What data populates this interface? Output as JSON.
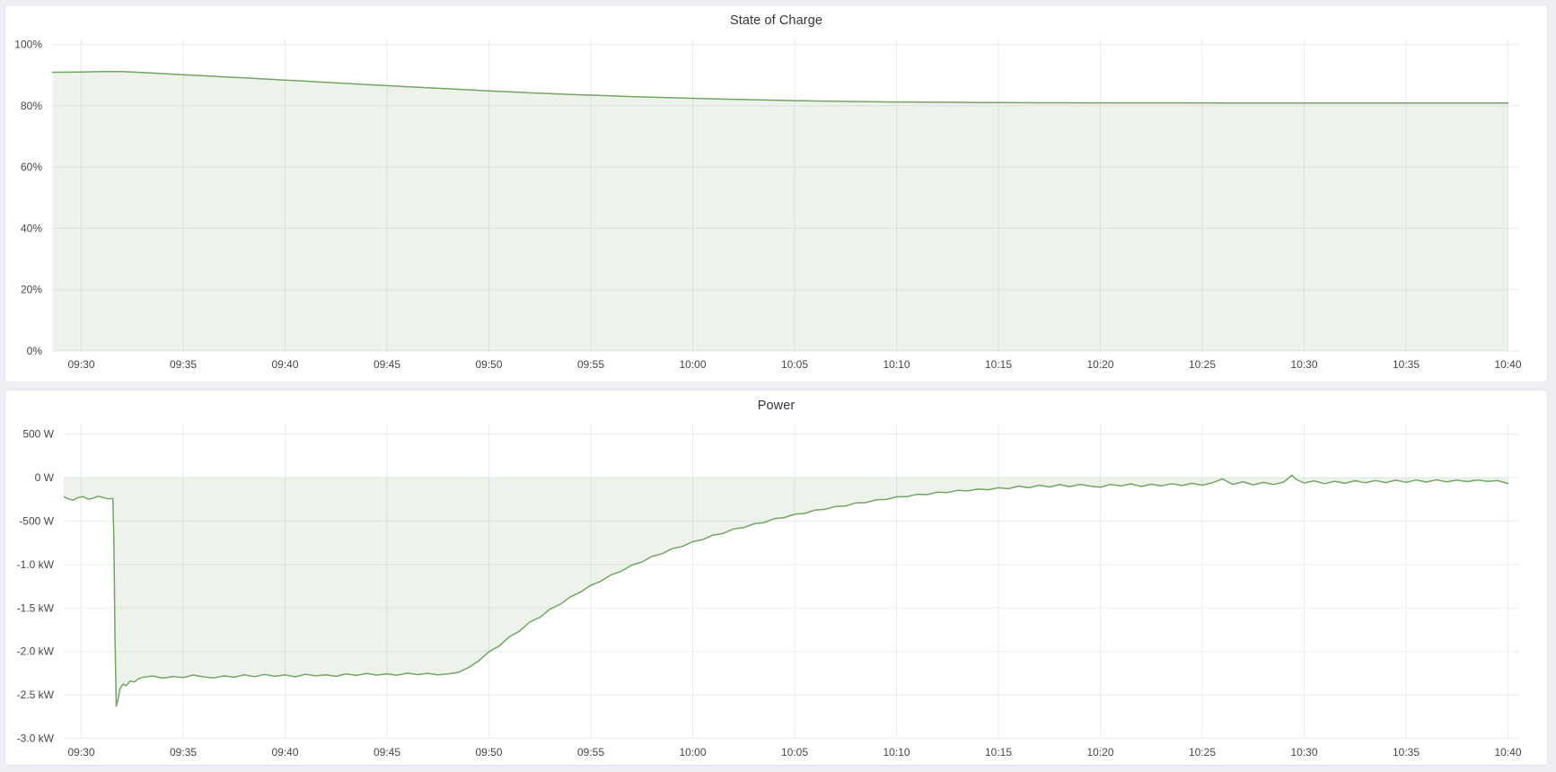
{
  "page": {
    "background": "#edeff5",
    "panel_background": "#ffffff"
  },
  "panels": [
    {
      "title": "State of Charge"
    },
    {
      "title": "Power"
    }
  ],
  "chart_data": [
    {
      "type": "area",
      "title": "State of Charge",
      "xlabel": "",
      "ylabel": "",
      "ylim": [
        0,
        100
      ],
      "grid": true,
      "legend": "none",
      "line_color": "#73a563",
      "fill_color": "rgba(115,165,99,0.13)",
      "x_ticks": [
        {
          "label": "09:30",
          "t": 0
        },
        {
          "label": "09:35",
          "t": 5
        },
        {
          "label": "09:40",
          "t": 10
        },
        {
          "label": "09:45",
          "t": 15
        },
        {
          "label": "09:50",
          "t": 20
        },
        {
          "label": "09:55",
          "t": 25
        },
        {
          "label": "10:00",
          "t": 30
        },
        {
          "label": "10:05",
          "t": 35
        },
        {
          "label": "10:10",
          "t": 40
        },
        {
          "label": "10:15",
          "t": 45
        },
        {
          "label": "10:20",
          "t": 50
        },
        {
          "label": "10:25",
          "t": 55
        },
        {
          "label": "10:30",
          "t": 60
        },
        {
          "label": "10:35",
          "t": 65
        },
        {
          "label": "10:40",
          "t": 70
        }
      ],
      "y_ticks": [
        {
          "label": "0%",
          "value": 0
        },
        {
          "label": "20%",
          "value": 20
        },
        {
          "label": "40%",
          "value": 40
        },
        {
          "label": "60%",
          "value": 60
        },
        {
          "label": "80%",
          "value": 80
        },
        {
          "label": "100%",
          "value": 100
        }
      ],
      "series": [
        {
          "name": "State of Charge",
          "unit": "%",
          "points": [
            [
              -1.4,
              90.92
            ],
            [
              0,
              91.0
            ],
            [
              0.7,
              91.1
            ],
            [
              1.3,
              91.18
            ],
            [
              2,
              91.12
            ],
            [
              2.5,
              91.0
            ],
            [
              3,
              90.82
            ],
            [
              4,
              90.47
            ],
            [
              5,
              90.12
            ],
            [
              6,
              89.77
            ],
            [
              7,
              89.42
            ],
            [
              8,
              89.07
            ],
            [
              9,
              88.72
            ],
            [
              10,
              88.37
            ],
            [
              11,
              88.02
            ],
            [
              12,
              87.64
            ],
            [
              13,
              87.28
            ],
            [
              14,
              86.92
            ],
            [
              15,
              86.57
            ],
            [
              16,
              86.22
            ],
            [
              17,
              85.87
            ],
            [
              18,
              85.52
            ],
            [
              19,
              85.2
            ],
            [
              20,
              84.86
            ],
            [
              21,
              84.55
            ],
            [
              22,
              84.22
            ],
            [
              23,
              83.96
            ],
            [
              24,
              83.7
            ],
            [
              25,
              83.45
            ],
            [
              26,
              83.22
            ],
            [
              27,
              83.0
            ],
            [
              28,
              82.8
            ],
            [
              29,
              82.6
            ],
            [
              30,
              82.42
            ],
            [
              31,
              82.26
            ],
            [
              32,
              82.1
            ],
            [
              33,
              81.96
            ],
            [
              34,
              81.82
            ],
            [
              35,
              81.68
            ],
            [
              36,
              81.56
            ],
            [
              37,
              81.46
            ],
            [
              38,
              81.37
            ],
            [
              39,
              81.3
            ],
            [
              40,
              81.24
            ],
            [
              41,
              81.19
            ],
            [
              42,
              81.14
            ],
            [
              43,
              81.1
            ],
            [
              44,
              81.06
            ],
            [
              45,
              81.03
            ],
            [
              46,
              81.0
            ],
            [
              47,
              80.98
            ],
            [
              48,
              80.97
            ],
            [
              50,
              80.95
            ],
            [
              52,
              80.94
            ],
            [
              54,
              80.93
            ],
            [
              56,
              80.92
            ],
            [
              58,
              80.91
            ],
            [
              60,
              80.9
            ],
            [
              62,
              80.89
            ],
            [
              64,
              80.885
            ],
            [
              66,
              80.88
            ],
            [
              68,
              80.875
            ],
            [
              70,
              80.87
            ]
          ]
        }
      ]
    },
    {
      "type": "area",
      "title": "Power",
      "xlabel": "",
      "ylabel": "",
      "ylim": [
        -3000,
        500
      ],
      "grid": true,
      "legend": "none",
      "line_color": "#73a563",
      "fill_color": "rgba(115,165,99,0.13)",
      "x_ticks": [
        {
          "label": "09:30",
          "t": 0
        },
        {
          "label": "09:35",
          "t": 5
        },
        {
          "label": "09:40",
          "t": 10
        },
        {
          "label": "09:45",
          "t": 15
        },
        {
          "label": "09:50",
          "t": 20
        },
        {
          "label": "09:55",
          "t": 25
        },
        {
          "label": "10:00",
          "t": 30
        },
        {
          "label": "10:05",
          "t": 35
        },
        {
          "label": "10:10",
          "t": 40
        },
        {
          "label": "10:15",
          "t": 45
        },
        {
          "label": "10:20",
          "t": 50
        },
        {
          "label": "10:25",
          "t": 55
        },
        {
          "label": "10:30",
          "t": 60
        },
        {
          "label": "10:35",
          "t": 65
        },
        {
          "label": "10:40",
          "t": 70
        }
      ],
      "y_ticks": [
        {
          "label": "500 W",
          "value": 500
        },
        {
          "label": "0 W",
          "value": 0
        },
        {
          "label": "-500 W",
          "value": -500
        },
        {
          "label": "-1.0 kW",
          "value": -1000
        },
        {
          "label": "-1.5 kW",
          "value": -1500
        },
        {
          "label": "-2.0 kW",
          "value": -2000
        },
        {
          "label": "-2.5 kW",
          "value": -2500
        },
        {
          "label": "-3.0 kW",
          "value": -3000
        }
      ],
      "series": [
        {
          "name": "Power",
          "unit": "W",
          "points": [
            [
              -1.4,
              -225
            ],
            [
              -1.15,
              -240
            ],
            [
              -0.9,
              -215
            ],
            [
              -0.65,
              -245
            ],
            [
              -0.4,
              -260
            ],
            [
              -0.15,
              -230
            ],
            [
              0.1,
              -220
            ],
            [
              0.35,
              -250
            ],
            [
              0.6,
              -235
            ],
            [
              0.85,
              -215
            ],
            [
              1.1,
              -232
            ],
            [
              1.35,
              -246
            ],
            [
              1.55,
              -240
            ],
            [
              1.6,
              -700
            ],
            [
              1.65,
              -1800
            ],
            [
              1.72,
              -2630
            ],
            [
              1.8,
              -2555
            ],
            [
              1.9,
              -2430
            ],
            [
              2.05,
              -2375
            ],
            [
              2.2,
              -2395
            ],
            [
              2.4,
              -2340
            ],
            [
              2.6,
              -2352
            ],
            [
              2.8,
              -2315
            ],
            [
              3,
              -2298
            ],
            [
              3.5,
              -2282
            ],
            [
              4,
              -2308
            ],
            [
              4.5,
              -2288
            ],
            [
              5,
              -2300
            ],
            [
              5.5,
              -2272
            ],
            [
              6,
              -2292
            ],
            [
              6.5,
              -2306
            ],
            [
              7,
              -2281
            ],
            [
              7.5,
              -2296
            ],
            [
              8,
              -2268
            ],
            [
              8.5,
              -2290
            ],
            [
              9,
              -2264
            ],
            [
              9.5,
              -2286
            ],
            [
              10,
              -2270
            ],
            [
              10.5,
              -2292
            ],
            [
              11,
              -2262
            ],
            [
              11.5,
              -2281
            ],
            [
              12,
              -2268
            ],
            [
              12.5,
              -2286
            ],
            [
              13,
              -2258
            ],
            [
              13.5,
              -2276
            ],
            [
              14,
              -2254
            ],
            [
              14.5,
              -2272
            ],
            [
              15,
              -2258
            ],
            [
              15.5,
              -2274
            ],
            [
              16,
              -2250
            ],
            [
              16.5,
              -2266
            ],
            [
              17,
              -2252
            ],
            [
              17.5,
              -2268
            ],
            [
              18,
              -2258
            ],
            [
              18.5,
              -2242
            ],
            [
              19,
              -2185
            ],
            [
              19.5,
              -2108
            ],
            [
              20,
              -2005
            ],
            [
              20.5,
              -1938
            ],
            [
              21,
              -1832
            ],
            [
              21.5,
              -1768
            ],
            [
              22,
              -1662
            ],
            [
              22.5,
              -1608
            ],
            [
              23,
              -1512
            ],
            [
              23.5,
              -1458
            ],
            [
              24,
              -1372
            ],
            [
              24.5,
              -1318
            ],
            [
              25,
              -1238
            ],
            [
              25.5,
              -1192
            ],
            [
              26,
              -1118
            ],
            [
              26.5,
              -1078
            ],
            [
              27,
              -1008
            ],
            [
              27.5,
              -972
            ],
            [
              28,
              -908
            ],
            [
              28.5,
              -876
            ],
            [
              29,
              -818
            ],
            [
              29.5,
              -792
            ],
            [
              30,
              -738
            ],
            [
              30.5,
              -712
            ],
            [
              31,
              -662
            ],
            [
              31.5,
              -642
            ],
            [
              32,
              -592
            ],
            [
              32.5,
              -576
            ],
            [
              33,
              -532
            ],
            [
              33.5,
              -518
            ],
            [
              34,
              -472
            ],
            [
              34.5,
              -460
            ],
            [
              35,
              -422
            ],
            [
              35.5,
              -412
            ],
            [
              36,
              -374
            ],
            [
              36.5,
              -366
            ],
            [
              37,
              -332
            ],
            [
              37.5,
              -326
            ],
            [
              38,
              -292
            ],
            [
              38.5,
              -288
            ],
            [
              39,
              -256
            ],
            [
              39.5,
              -252
            ],
            [
              40,
              -222
            ],
            [
              40.5,
              -220
            ],
            [
              41,
              -192
            ],
            [
              41.5,
              -196
            ],
            [
              42,
              -168
            ],
            [
              42.5,
              -172
            ],
            [
              43,
              -148
            ],
            [
              43.5,
              -154
            ],
            [
              44,
              -132
            ],
            [
              44.5,
              -140
            ],
            [
              45,
              -118
            ],
            [
              45.5,
              -128
            ],
            [
              46,
              -98
            ],
            [
              46.5,
              -118
            ],
            [
              47,
              -88
            ],
            [
              47.5,
              -108
            ],
            [
              48,
              -82
            ],
            [
              48.5,
              -104
            ],
            [
              49,
              -78
            ],
            [
              49.5,
              -98
            ],
            [
              50,
              -112
            ],
            [
              50.5,
              -80
            ],
            [
              51,
              -96
            ],
            [
              51.5,
              -72
            ],
            [
              52,
              -102
            ],
            [
              52.5,
              -76
            ],
            [
              53,
              -95
            ],
            [
              53.5,
              -70
            ],
            [
              54,
              -92
            ],
            [
              54.5,
              -66
            ],
            [
              55,
              -88
            ],
            [
              55.5,
              -60
            ],
            [
              56,
              -15
            ],
            [
              56.3,
              -55
            ],
            [
              56.5,
              -78
            ],
            [
              57,
              -48
            ],
            [
              57.5,
              -85
            ],
            [
              58,
              -56
            ],
            [
              58.5,
              -80
            ],
            [
              59,
              -52
            ],
            [
              59.4,
              28
            ],
            [
              59.6,
              -20
            ],
            [
              60,
              -62
            ],
            [
              60.5,
              -38
            ],
            [
              61,
              -70
            ],
            [
              61.5,
              -42
            ],
            [
              62,
              -66
            ],
            [
              62.5,
              -36
            ],
            [
              63,
              -60
            ],
            [
              63.5,
              -34
            ],
            [
              64,
              -58
            ],
            [
              64.5,
              -30
            ],
            [
              65,
              -55
            ],
            [
              65.5,
              -28
            ],
            [
              66,
              -52
            ],
            [
              66.5,
              -26
            ],
            [
              67,
              -50
            ],
            [
              67.5,
              -30
            ],
            [
              68,
              -46
            ],
            [
              68.5,
              -28
            ],
            [
              69,
              -44
            ],
            [
              69.5,
              -35
            ],
            [
              70,
              -68
            ]
          ]
        }
      ]
    }
  ]
}
